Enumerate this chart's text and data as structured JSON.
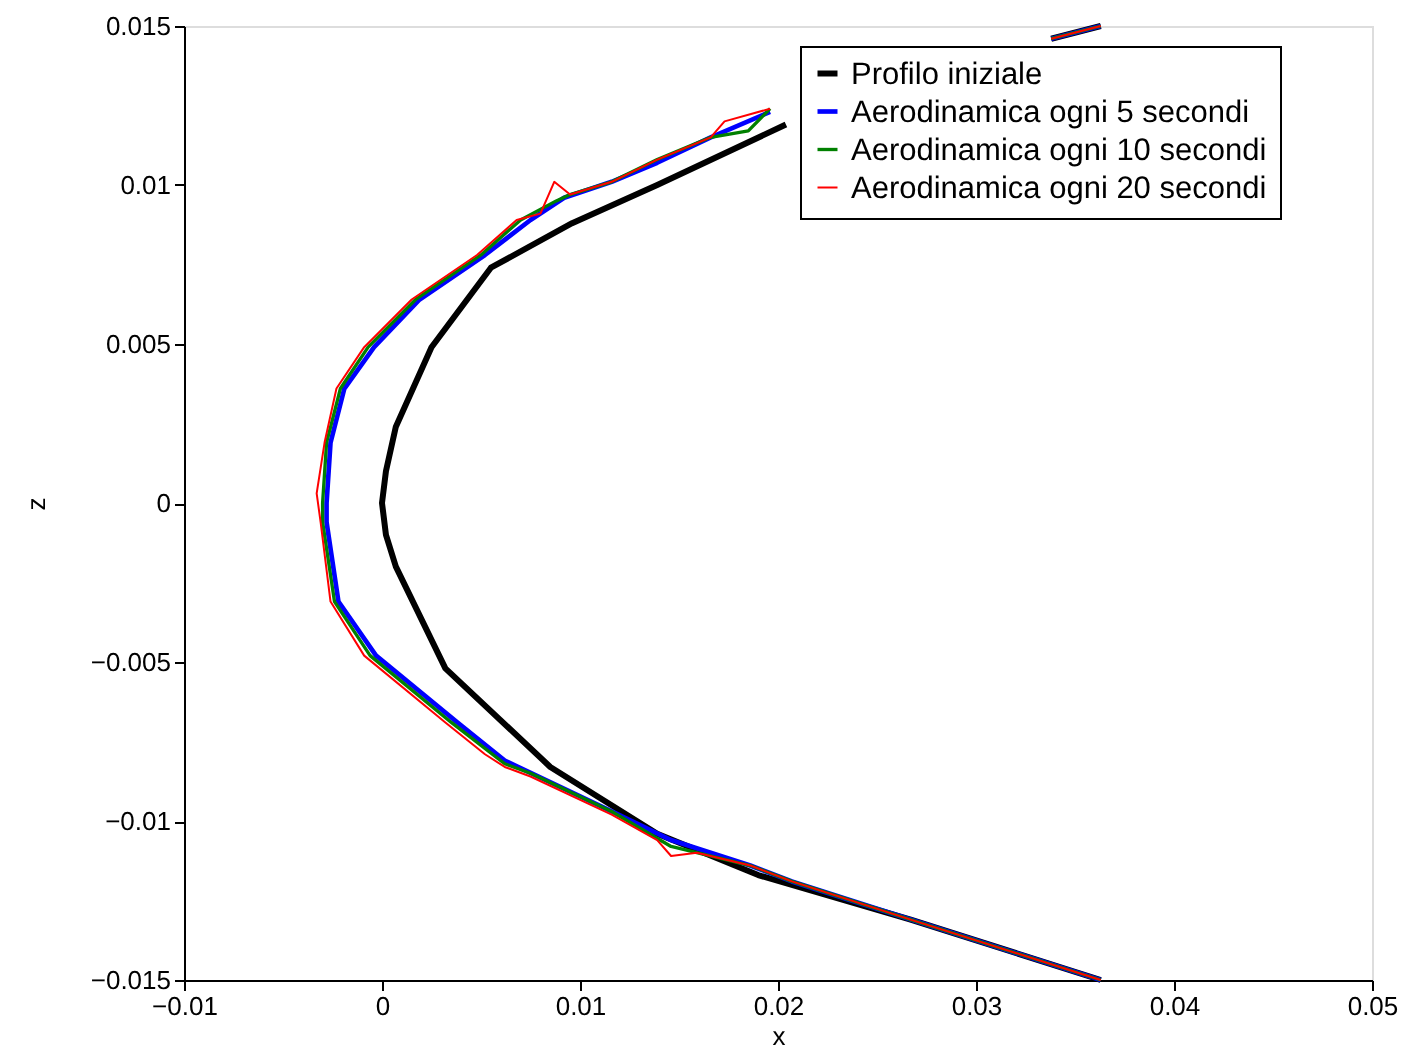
{
  "chart_data": {
    "type": "line",
    "xlabel": "x",
    "ylabel": "z",
    "xlim": [
      -0.01,
      0.05
    ],
    "ylim": [
      -0.015,
      0.015
    ],
    "xticks": [
      -0.01,
      0,
      0.01,
      0.02,
      0.03,
      0.04,
      0.05
    ],
    "yticks": [
      -0.015,
      -0.01,
      -0.005,
      0,
      0.005,
      0.01,
      0.015
    ],
    "grid": false,
    "legend": "top right",
    "line_style": "solid",
    "marker": "none",
    "series": [
      {
        "name": "Profilo iniziale",
        "color": "#000000",
        "x": [
          0.0363,
          0.0267,
          0.019,
          0.0139,
          0.0085,
          0.0032,
          0.0007,
          0.0002,
          0,
          0.0002,
          0.0007,
          0.0025,
          0.0055,
          0.0096,
          0.0139,
          0.0204,
          0.0275,
          0.0338,
          0.0363
        ],
        "values": [
          -0.015,
          -0.0131,
          -0.0117,
          -0.0104,
          -0.0083,
          -0.0052,
          -0.002,
          -0.001,
          0,
          0.001,
          0.0024,
          0.0049,
          0.0074,
          0.0088,
          0.01,
          0.0119,
          null,
          0.0146,
          0.015
        ]
      },
      {
        "name": "Aerodinamica ogni 5 secondi",
        "color": "#0000ff",
        "x": [
          0.0363,
          0.0267,
          0.0207,
          0.0186,
          0.0146,
          0.0116,
          0.0062,
          0.0038,
          -0.0003,
          -0.0022,
          -0.0028,
          -0.0028,
          -0.0026,
          -0.0019,
          -0.0004,
          0.0019,
          0.0052,
          0.0075,
          0.0092,
          0.0116,
          0.0139,
          0.0166,
          0.0196,
          0.025,
          0.0338,
          0.0363
        ],
        "values": [
          -0.015,
          -0.0131,
          -0.0119,
          -0.0114,
          -0.0106,
          -0.0097,
          -0.0081,
          -0.0069,
          -0.0048,
          -0.0031,
          -0.0006,
          0,
          0.0019,
          0.0036,
          0.0049,
          0.0064,
          0.0078,
          0.0089,
          0.0096,
          0.0101,
          0.0107,
          0.0115,
          0.0123,
          null,
          0.0146,
          0.015
        ]
      },
      {
        "name": "Aerodinamica ogni 10 secondi",
        "color": "#008000",
        "x": [
          0.0363,
          0.0267,
          0.0207,
          0.0186,
          0.0146,
          0.0116,
          0.0075,
          0.0062,
          0.0035,
          -0.0006,
          -0.0024,
          -0.003,
          -0.003,
          -0.0028,
          -0.0021,
          -0.0007,
          0.0017,
          0.005,
          0.007,
          0.0088,
          0.0095,
          0.0116,
          0.0139,
          0.0166,
          0.0185,
          0.0196,
          0.025,
          0.0338,
          0.0363
        ],
        "values": [
          -0.015,
          -0.0131,
          -0.0119,
          -0.0114,
          -0.0108,
          -0.0097,
          -0.0085,
          -0.0082,
          -0.0069,
          -0.0048,
          -0.0031,
          -0.0006,
          0,
          0.0019,
          0.0036,
          0.0049,
          0.0064,
          0.0078,
          0.0089,
          0.0095,
          0.0097,
          0.0101,
          0.0108,
          0.0115,
          0.0117,
          0.0124,
          null,
          0.0146,
          0.015
        ]
      },
      {
        "name": "Aerodinamica ogni 20 secondi",
        "color": "#ff0000",
        "x": [
          0.0363,
          0.0267,
          0.0207,
          0.0186,
          0.0159,
          0.0146,
          0.0139,
          0.0116,
          0.0075,
          0.0062,
          0.0052,
          0.0032,
          -0.0009,
          -0.0026,
          -0.0031,
          -0.0033,
          -0.0029,
          -0.0023,
          -0.0009,
          0.0015,
          0.0048,
          0.0068,
          0.008,
          0.0087,
          0.0095,
          0.0116,
          0.0139,
          0.0166,
          0.0173,
          0.0196,
          0.025,
          0.0338,
          0.0363
        ],
        "values": [
          -0.015,
          -0.0131,
          -0.0119,
          -0.0114,
          -0.011,
          -0.0111,
          -0.0106,
          -0.0098,
          -0.0086,
          -0.0083,
          -0.0079,
          -0.0069,
          -0.0048,
          -0.0031,
          -0.0006,
          0.0003,
          0.0019,
          0.0036,
          0.0049,
          0.0064,
          0.0078,
          0.0089,
          0.0091,
          0.0101,
          0.0097,
          0.0101,
          0.0108,
          0.0115,
          0.012,
          0.0124,
          null,
          0.0146,
          0.015
        ]
      }
    ]
  }
}
